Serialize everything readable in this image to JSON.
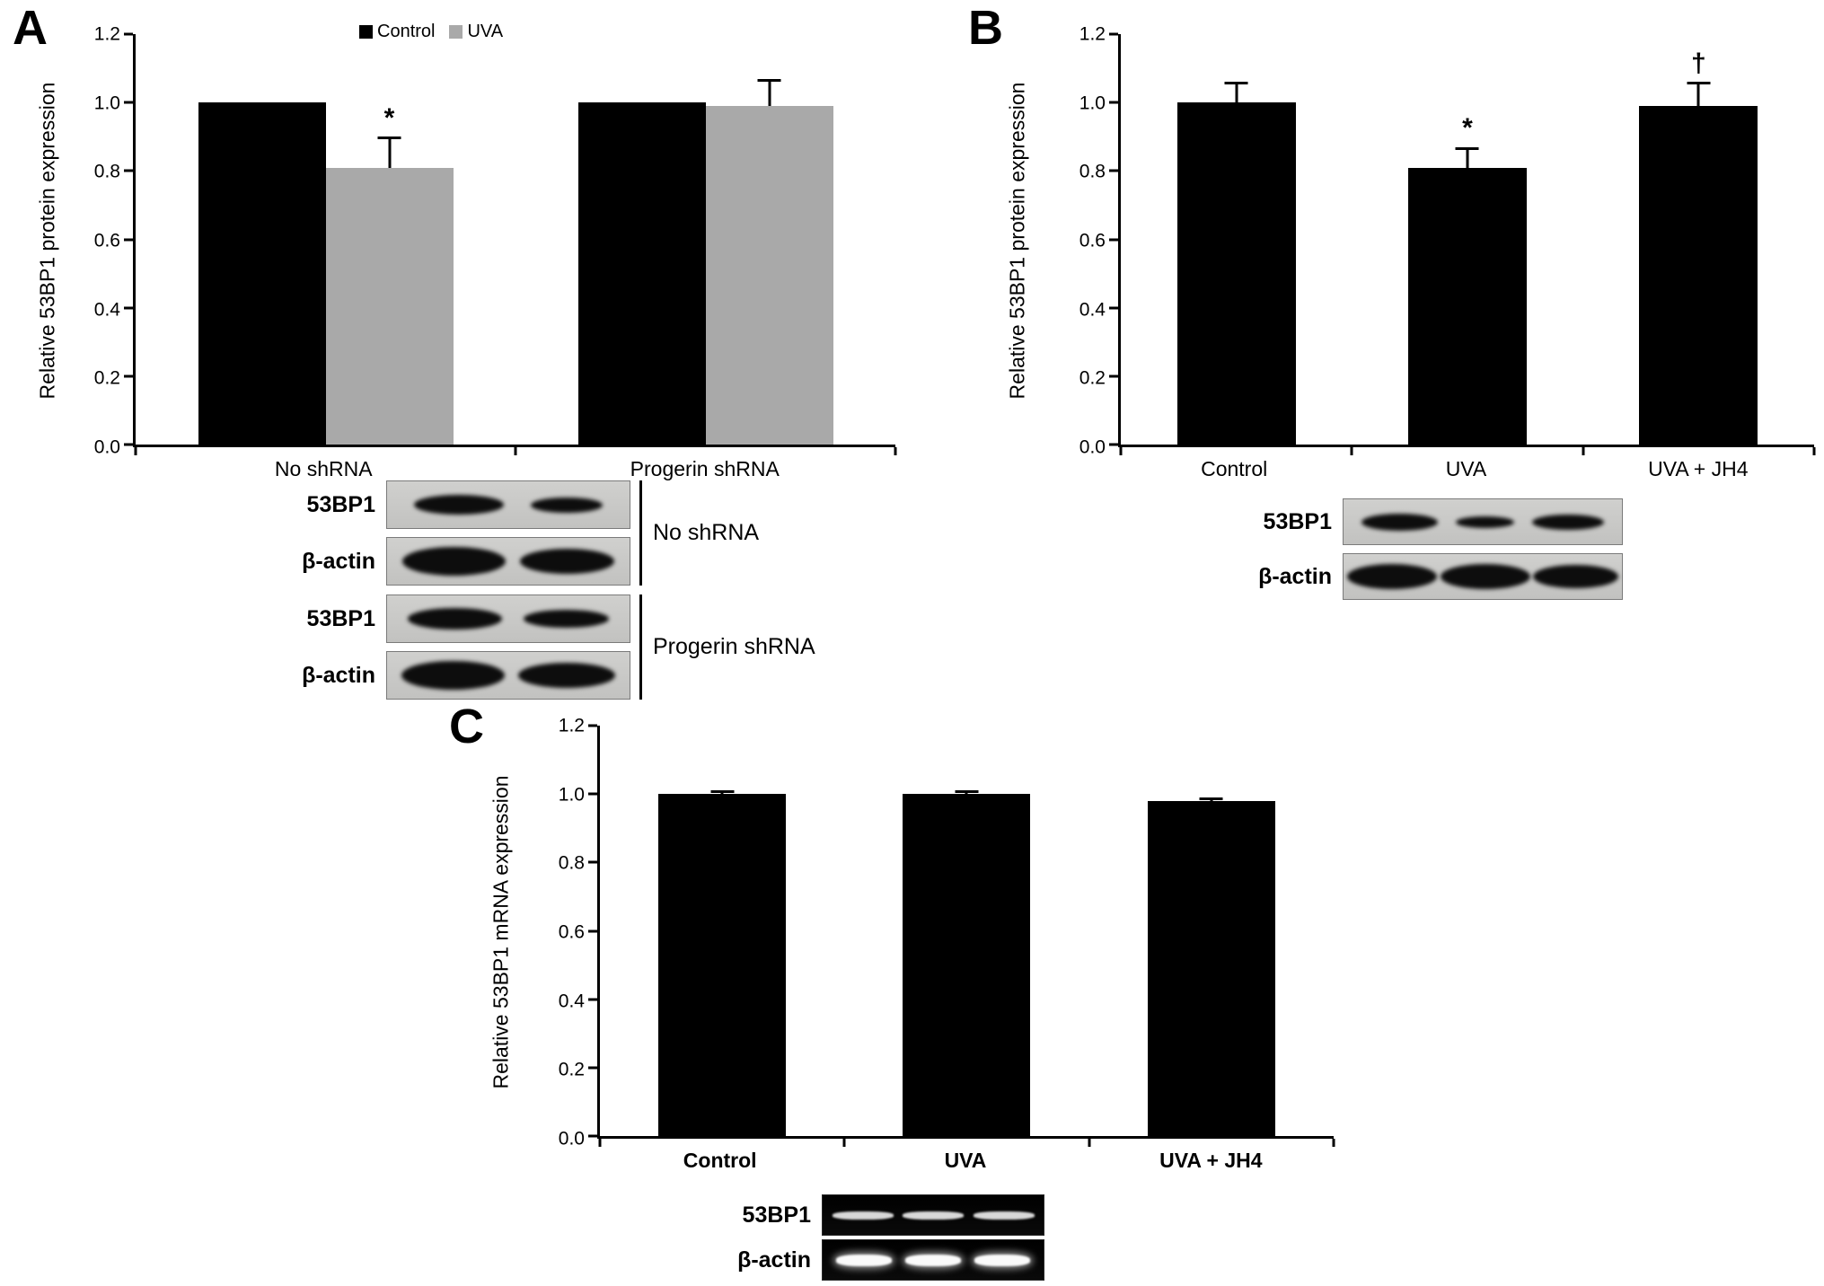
{
  "figure": {
    "panels": [
      {
        "label": "A"
      },
      {
        "label": "B"
      },
      {
        "label": "C"
      }
    ]
  },
  "chart_data": [
    {
      "id": "A",
      "type": "bar",
      "title": "",
      "ylabel": "Relative 53BP1 protein expression",
      "xlabel": "",
      "ylim": [
        0,
        1.2
      ],
      "ytick_step": 0.2,
      "grid": false,
      "legend": true,
      "legend_position": "top-center",
      "categories": [
        "No shRNA",
        "Progerin shRNA"
      ],
      "series": [
        {
          "name": "Control",
          "color": "#000000",
          "values": [
            1.0,
            1.0
          ],
          "errors": [
            0,
            0
          ],
          "annotations": [
            "",
            ""
          ]
        },
        {
          "name": "UVA",
          "color": "#a9a9a9",
          "values": [
            0.81,
            0.99
          ],
          "errors": [
            0.09,
            0.08
          ],
          "annotations": [
            "*",
            ""
          ]
        }
      ]
    },
    {
      "id": "B",
      "type": "bar",
      "title": "",
      "ylabel": "Relative 53BP1 protein expression",
      "xlabel": "",
      "ylim": [
        0,
        1.2
      ],
      "ytick_step": 0.2,
      "grid": false,
      "legend": false,
      "categories": [
        "Control",
        "UVA",
        "UVA + JH4"
      ],
      "series": [
        {
          "name": "53BP1 protein",
          "color": "#000000",
          "values": [
            1.0,
            0.81,
            0.99
          ],
          "errors": [
            0.06,
            0.06,
            0.07
          ],
          "annotations": [
            "",
            "*",
            "†"
          ]
        }
      ]
    },
    {
      "id": "C",
      "type": "bar",
      "title": "",
      "ylabel": "Relative 53BP1 mRNA expression",
      "xlabel": "",
      "ylim": [
        0,
        1.2
      ],
      "ytick_step": 0.2,
      "grid": false,
      "legend": false,
      "categories": [
        "Control",
        "UVA",
        "UVA + JH4"
      ],
      "series": [
        {
          "name": "53BP1 mRNA",
          "color": "#000000",
          "values": [
            1.0,
            1.0,
            0.98
          ],
          "errors": [
            0.01,
            0.01,
            0.01
          ],
          "annotations": [
            "",
            "",
            ""
          ]
        }
      ]
    }
  ],
  "blots": {
    "panel_a": {
      "groups": [
        {
          "label": "No shRNA",
          "rows": [
            {
              "label": "53BP1"
            },
            {
              "label": "β-actin"
            }
          ]
        },
        {
          "label": "Progerin shRNA",
          "rows": [
            {
              "label": "53BP1"
            },
            {
              "label": "β-actin"
            }
          ]
        }
      ]
    },
    "panel_b": {
      "rows": [
        {
          "label": "53BP1"
        },
        {
          "label": "β-actin"
        }
      ]
    },
    "panel_c": {
      "rows": [
        {
          "label": "53BP1"
        },
        {
          "label": "β-actin"
        }
      ]
    }
  }
}
